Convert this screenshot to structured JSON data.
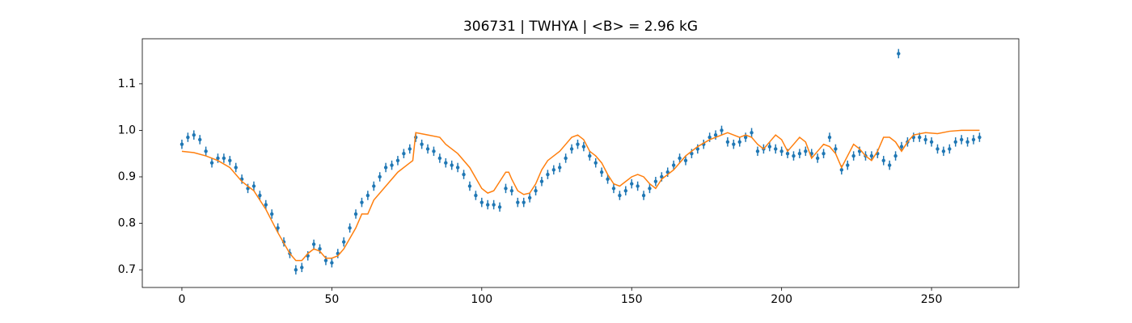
{
  "chart_data": {
    "type": "scatter",
    "title": "306731 | TWHYA | <B> = 2.96 kG",
    "xlim": [
      -13.2,
      279.1
    ],
    "ylim": [
      0.662,
      1.197
    ],
    "xticks": [
      0,
      50,
      100,
      150,
      200,
      250
    ],
    "yticks": [
      0.7,
      0.8,
      0.9,
      {
        "value": 1.0,
        "label": "1.0"
      },
      1.1
    ],
    "series": [
      {
        "color": "#1f77b4",
        "yerr": 0.01,
        "x": [
          0,
          2,
          4,
          6,
          8,
          10,
          12,
          14,
          16,
          18,
          20,
          22,
          24,
          26,
          28,
          30,
          32,
          34,
          36,
          38,
          40,
          42,
          44,
          46,
          48,
          50,
          52,
          54,
          56,
          58,
          60,
          62,
          64,
          66,
          68,
          70,
          72,
          74,
          76,
          78,
          80,
          82,
          84,
          86,
          88,
          90,
          92,
          94,
          96,
          98,
          100,
          102,
          104,
          106,
          108,
          110,
          112,
          114,
          116,
          118,
          120,
          122,
          124,
          126,
          128,
          130,
          132,
          134,
          136,
          138,
          140,
          142,
          144,
          146,
          148,
          150,
          152,
          154,
          156,
          158,
          160,
          162,
          164,
          166,
          168,
          170,
          172,
          174,
          176,
          178,
          180,
          182,
          184,
          186,
          188,
          190,
          192,
          194,
          196,
          198,
          200,
          202,
          204,
          206,
          208,
          210,
          212,
          214,
          216,
          218,
          220,
          222,
          224,
          226,
          228,
          230,
          232,
          234,
          236,
          238,
          239,
          240,
          242,
          244,
          246,
          248,
          250,
          252,
          254,
          256,
          258,
          260,
          262,
          264,
          266
        ],
        "values": [
          0.97,
          0.985,
          0.99,
          0.98,
          0.955,
          0.93,
          0.94,
          0.94,
          0.935,
          0.92,
          0.895,
          0.875,
          0.88,
          0.86,
          0.84,
          0.82,
          0.79,
          0.76,
          0.735,
          0.7,
          0.705,
          0.73,
          0.755,
          0.745,
          0.72,
          0.715,
          0.735,
          0.76,
          0.79,
          0.82,
          0.845,
          0.86,
          0.88,
          0.9,
          0.92,
          0.925,
          0.935,
          0.95,
          0.96,
          0.985,
          0.97,
          0.96,
          0.955,
          0.94,
          0.93,
          0.925,
          0.92,
          0.905,
          0.88,
          0.86,
          0.845,
          0.84,
          0.84,
          0.835,
          0.875,
          0.87,
          0.845,
          0.845,
          0.855,
          0.87,
          0.89,
          0.905,
          0.915,
          0.92,
          0.94,
          0.96,
          0.97,
          0.965,
          0.945,
          0.93,
          0.91,
          0.895,
          0.875,
          0.86,
          0.87,
          0.885,
          0.88,
          0.86,
          0.875,
          0.89,
          0.9,
          0.91,
          0.925,
          0.94,
          0.935,
          0.95,
          0.96,
          0.97,
          0.985,
          0.99,
          1.0,
          0.975,
          0.97,
          0.975,
          0.985,
          0.995,
          0.955,
          0.96,
          0.965,
          0.96,
          0.955,
          0.95,
          0.945,
          0.95,
          0.955,
          0.95,
          0.94,
          0.95,
          0.985,
          0.96,
          0.915,
          0.925,
          0.945,
          0.955,
          0.945,
          0.945,
          0.95,
          0.935,
          0.925,
          0.945,
          1.165,
          0.965,
          0.975,
          0.985,
          0.985,
          0.98,
          0.975,
          0.96,
          0.955,
          0.96,
          0.975,
          0.98,
          0.975,
          0.98,
          0.985
        ]
      },
      {
        "type": "line",
        "color": "#ff7f0e",
        "x": [
          0,
          4,
          8,
          12,
          16,
          20,
          24,
          28,
          32,
          36,
          38,
          40,
          42,
          44,
          46,
          48,
          50,
          52,
          54,
          58,
          60,
          62,
          64,
          68,
          72,
          76,
          77,
          78,
          82,
          86,
          88,
          92,
          96,
          100,
          102,
          104,
          106,
          108,
          109,
          110,
          112,
          114,
          116,
          118,
          120,
          122,
          124,
          126,
          128,
          130,
          132,
          134,
          136,
          138,
          140,
          142,
          144,
          146,
          148,
          150,
          152,
          154,
          156,
          158,
          160,
          164,
          168,
          172,
          176,
          180,
          182,
          184,
          186,
          188,
          190,
          192,
          194,
          196,
          198,
          200,
          202,
          204,
          206,
          208,
          210,
          212,
          214,
          216,
          218,
          220,
          222,
          224,
          226,
          228,
          230,
          232,
          234,
          236,
          238,
          240,
          242,
          244,
          248,
          252,
          256,
          260,
          266
        ],
        "values": [
          0.955,
          0.952,
          0.945,
          0.935,
          0.92,
          0.89,
          0.87,
          0.83,
          0.78,
          0.735,
          0.72,
          0.72,
          0.735,
          0.745,
          0.74,
          0.725,
          0.725,
          0.73,
          0.745,
          0.79,
          0.82,
          0.82,
          0.85,
          0.88,
          0.91,
          0.93,
          0.935,
          0.995,
          0.99,
          0.985,
          0.97,
          0.95,
          0.92,
          0.875,
          0.865,
          0.87,
          0.89,
          0.91,
          0.91,
          0.895,
          0.87,
          0.862,
          0.865,
          0.885,
          0.915,
          0.935,
          0.945,
          0.955,
          0.97,
          0.985,
          0.99,
          0.98,
          0.955,
          0.945,
          0.93,
          0.905,
          0.885,
          0.88,
          0.89,
          0.9,
          0.905,
          0.9,
          0.885,
          0.875,
          0.895,
          0.915,
          0.945,
          0.965,
          0.98,
          0.99,
          0.995,
          0.99,
          0.985,
          0.99,
          0.985,
          0.97,
          0.96,
          0.975,
          0.99,
          0.98,
          0.955,
          0.97,
          0.985,
          0.975,
          0.94,
          0.955,
          0.97,
          0.965,
          0.95,
          0.92,
          0.945,
          0.97,
          0.96,
          0.945,
          0.935,
          0.955,
          0.985,
          0.985,
          0.975,
          0.955,
          0.975,
          0.99,
          0.995,
          0.993,
          0.998,
          1.0,
          1.0
        ]
      }
    ]
  }
}
